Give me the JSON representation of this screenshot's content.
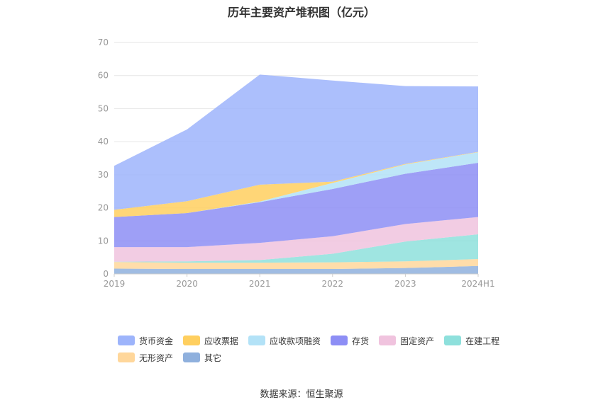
{
  "chart_data": {
    "type": "area",
    "title": "历年主要资产堆积图（亿元）",
    "categories": [
      "2019",
      "2020",
      "2021",
      "2022",
      "2023",
      "2024H1"
    ],
    "ylim": [
      0,
      70
    ],
    "yticks": [
      0,
      10,
      20,
      30,
      40,
      50,
      60,
      70
    ],
    "stacked": true,
    "grid": true,
    "legend_position": "bottom",
    "series": [
      {
        "name": "其它",
        "color": "#8fb0dd",
        "values": [
          1.6,
          1.5,
          1.5,
          1.5,
          1.8,
          2.4
        ]
      },
      {
        "name": "无形资产",
        "color": "#ffd79b",
        "values": [
          2.0,
          1.9,
          1.9,
          2.0,
          2.0,
          2.1
        ]
      },
      {
        "name": "在建工程",
        "color": "#8ee0dc",
        "values": [
          0.1,
          0.4,
          0.8,
          2.6,
          6.0,
          7.5
        ]
      },
      {
        "name": "固定资产",
        "color": "#f0c3de",
        "values": [
          4.4,
          4.3,
          5.2,
          5.3,
          5.3,
          5.2
        ]
      },
      {
        "name": "存货",
        "color": "#8d8ef5",
        "values": [
          9.1,
          10.3,
          12.3,
          14.3,
          15.2,
          16.4
        ]
      },
      {
        "name": "应收款项融资",
        "color": "#b3e2f7",
        "values": [
          0,
          0,
          0.2,
          1.8,
          2.8,
          3.2
        ]
      },
      {
        "name": "应收票据",
        "color": "#ffcf5f",
        "values": [
          2.2,
          3.6,
          5.1,
          0.4,
          0.2,
          0.1
        ]
      },
      {
        "name": "货币资金",
        "color": "#9db4fb",
        "values": [
          13.3,
          21.7,
          33.3,
          30.6,
          23.5,
          19.8
        ]
      }
    ],
    "legend_order": [
      "货币资金",
      "应收票据",
      "应收款项融资",
      "存货",
      "固定资产",
      "在建工程",
      "无形资产",
      "其它"
    ]
  },
  "footer": {
    "source": "数据来源：恒生聚源"
  }
}
